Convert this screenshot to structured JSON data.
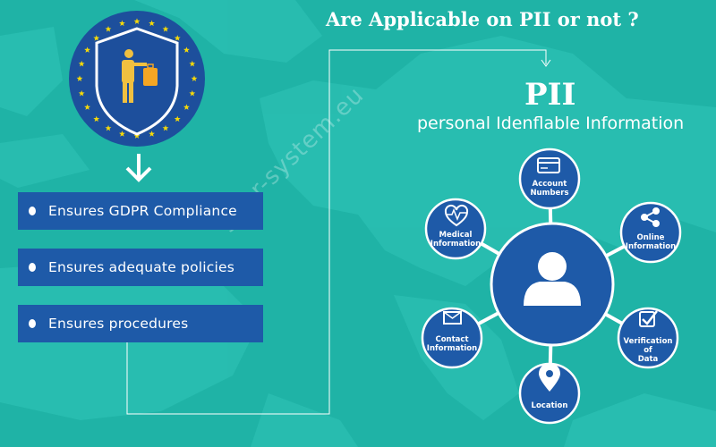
{
  "colors": {
    "background": "#1fb3a6",
    "node_blue": "#1e5aa8",
    "badge_navy": "#1d4f9c",
    "star_yellow": "#f5d90a"
  },
  "question": "Are Applicable on PII or not ?",
  "pii": {
    "title": "PII",
    "subtitle": "personal Idenflable Information"
  },
  "watermark": "gdpr-system.eu",
  "badge": {
    "icons": [
      "eu-stars",
      "shield-icon",
      "person-with-briefcase-icon"
    ]
  },
  "ensures": [
    {
      "label": "Ensures GDPR Compliance"
    },
    {
      "label": "Ensures adequate policies"
    },
    {
      "label": "Ensures procedures"
    }
  ],
  "nodes": [
    {
      "id": "account",
      "label_lines": [
        "Account",
        "Numbers"
      ],
      "icon": "credit-card-icon"
    },
    {
      "id": "online",
      "label_lines": [
        "Online",
        "Information"
      ],
      "icon": "share-icon"
    },
    {
      "id": "verification",
      "label_lines": [
        "Verification",
        "of",
        "Data"
      ],
      "icon": "checkbox-icon"
    },
    {
      "id": "location",
      "label_lines": [
        "Location"
      ],
      "icon": "location-pin-icon"
    },
    {
      "id": "contact",
      "label_lines": [
        "Contact",
        "Information"
      ],
      "icon": "envelope-icon"
    },
    {
      "id": "medical",
      "label_lines": [
        "Medical",
        "Information"
      ],
      "icon": "heart-pulse-icon"
    }
  ],
  "center_icon": "user-icon"
}
